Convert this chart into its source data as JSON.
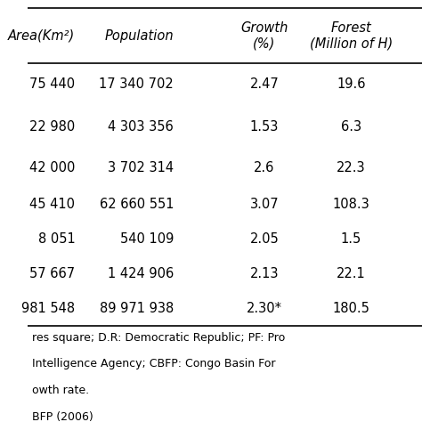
{
  "headers": [
    "Area(Km²)",
    "Population",
    "Growth\n(%)",
    "Forest\n(Million of H)"
  ],
  "rows": [
    [
      "75 440",
      "17 340 702",
      "2.47",
      "19.6"
    ],
    [
      "22 980",
      "4 303 356",
      "1.53",
      "6.3"
    ],
    [
      "42 000",
      "3 702 314",
      "2.6",
      "22.3"
    ],
    [
      "45 410",
      "62 660 551",
      "3.07",
      "108.3"
    ],
    [
      "8 051",
      "540 109",
      "2.05",
      "1.5"
    ],
    [
      "57 667",
      "1 424 906",
      "2.13",
      "22.1"
    ],
    [
      "981 548",
      "89 971 938",
      "2.30*",
      "180.5"
    ]
  ],
  "footer_lines": [
    "res square; D.R: Democratic Republic; PF: Pro",
    "Intelligence Agency; CBFP: Congo Basin For",
    "owth rate.",
    "BFP (2006)"
  ],
  "bg_color": "#ffffff",
  "text_color": "#000000",
  "header_line_color": "#000000",
  "font_size": 10.5,
  "footer_font_size": 9.0
}
